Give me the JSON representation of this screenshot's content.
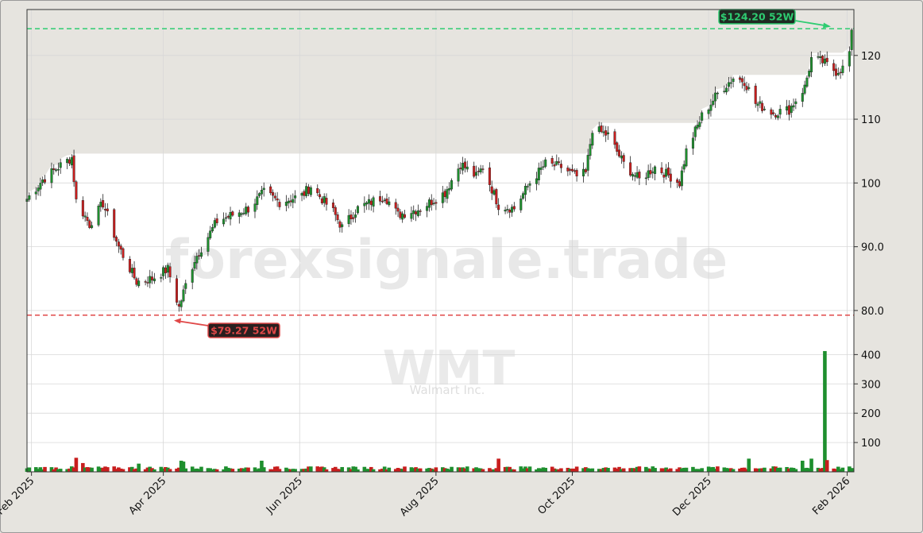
{
  "watermark": {
    "site": "forexsignale.trade",
    "ticker": "WMT",
    "company": "Walmart Inc."
  },
  "colors": {
    "up": "#1e8f2e",
    "down": "#c81e1e",
    "high_line": "#2ecc71",
    "low_line": "#e04848",
    "grid": "#d8d8d8",
    "shade": "#e6e4df"
  },
  "annotations": {
    "high_label": "$124.20 52W",
    "low_label": "$79.27 52W"
  },
  "chart_data": [
    {
      "type": "candlestick",
      "title": "",
      "ylim": [
        75.5,
        127.2
      ],
      "yticks": [
        80,
        90,
        100,
        110,
        120
      ],
      "ytick_labels": [
        "80.0",
        "90.0",
        "100",
        "110",
        "120"
      ],
      "grid": true,
      "high_52w": 124.2,
      "low_52w": 79.27,
      "x_tick_labels": [
        "Feb 2025",
        "Apr 2025",
        "Jun 2025",
        "Aug 2025",
        "Oct 2025",
        "Dec 2025",
        "Feb 2026"
      ],
      "x_tick_dates": [
        "2025-02-01",
        "2025-04-01",
        "2025-06-01",
        "2025-08-01",
        "2025-10-01",
        "2025-12-01",
        "2026-02-01"
      ],
      "x_range": [
        "2025-01-30",
        "2026-02-04"
      ],
      "close_anchors": [
        [
          "2025-01-30",
          97.5
        ],
        [
          "2025-02-06",
          100.5
        ],
        [
          "2025-02-13",
          102.5
        ],
        [
          "2025-02-19",
          104.0
        ],
        [
          "2025-02-21",
          97.2
        ],
        [
          "2025-02-27",
          93.5
        ],
        [
          "2025-03-05",
          96.8
        ],
        [
          "2025-03-12",
          90.0
        ],
        [
          "2025-03-20",
          84.5
        ],
        [
          "2025-03-27",
          85.0
        ],
        [
          "2025-04-03",
          86.5
        ],
        [
          "2025-04-08",
          80.5
        ],
        [
          "2025-04-11",
          84.0
        ],
        [
          "2025-04-15",
          88.0
        ],
        [
          "2025-04-25",
          94.0
        ],
        [
          "2025-05-09",
          96.0
        ],
        [
          "2025-05-16",
          98.5
        ],
        [
          "2025-05-23",
          97.0
        ],
        [
          "2025-06-02",
          98.0
        ],
        [
          "2025-06-06",
          99.5
        ],
        [
          "2025-06-16",
          95.5
        ],
        [
          "2025-06-20",
          93.0
        ],
        [
          "2025-06-27",
          96.0
        ],
        [
          "2025-07-09",
          98.0
        ],
        [
          "2025-07-15",
          95.0
        ],
        [
          "2025-07-25",
          96.0
        ],
        [
          "2025-08-05",
          98.5
        ],
        [
          "2025-08-12",
          103.0
        ],
        [
          "2025-08-19",
          101.0
        ],
        [
          "2025-08-22",
          102.5
        ],
        [
          "2025-08-29",
          96.5
        ],
        [
          "2025-09-05",
          96.0
        ],
        [
          "2025-09-12",
          100.0
        ],
        [
          "2025-09-19",
          103.0
        ],
        [
          "2025-09-26",
          102.5
        ],
        [
          "2025-10-03",
          101.0
        ],
        [
          "2025-10-07",
          101.5
        ],
        [
          "2025-10-10",
          108.5
        ],
        [
          "2025-10-17",
          107.5
        ],
        [
          "2025-10-24",
          103.0
        ],
        [
          "2025-10-31",
          100.5
        ],
        [
          "2025-11-07",
          102.5
        ],
        [
          "2025-11-14",
          101.0
        ],
        [
          "2025-11-18",
          100.0
        ],
        [
          "2025-11-21",
          105.0
        ],
        [
          "2025-11-28",
          110.5
        ],
        [
          "2025-12-05",
          114.0
        ],
        [
          "2025-12-12",
          116.5
        ],
        [
          "2025-12-17",
          116.0
        ],
        [
          "2025-12-22",
          112.5
        ],
        [
          "2025-12-30",
          111.0
        ],
        [
          "2026-01-06",
          111.5
        ],
        [
          "2026-01-13",
          115.0
        ],
        [
          "2026-01-16",
          119.5
        ],
        [
          "2026-01-21",
          119.0
        ],
        [
          "2026-01-27",
          117.5
        ],
        [
          "2026-01-30",
          118.0
        ],
        [
          "2026-02-02",
          120.5
        ],
        [
          "2026-02-03",
          124.0
        ]
      ]
    },
    {
      "type": "bar",
      "title": "",
      "ylim": [
        0,
        420
      ],
      "yticks": [
        100,
        200,
        300,
        400
      ],
      "ytick_labels": [
        "100",
        "200",
        "300",
        "400"
      ],
      "baseline_volume": 15,
      "volume_spikes": [
        [
          "2025-02-21",
          48
        ],
        [
          "2025-02-24",
          30
        ],
        [
          "2025-03-21",
          28
        ],
        [
          "2025-04-09",
          38
        ],
        [
          "2025-04-10",
          35
        ],
        [
          "2025-05-15",
          38
        ],
        [
          "2025-08-29",
          45
        ],
        [
          "2025-12-19",
          45
        ],
        [
          "2026-01-12",
          38
        ],
        [
          "2026-01-16",
          45
        ],
        [
          "2026-01-22",
          412
        ],
        [
          "2026-01-23",
          40
        ]
      ]
    }
  ]
}
